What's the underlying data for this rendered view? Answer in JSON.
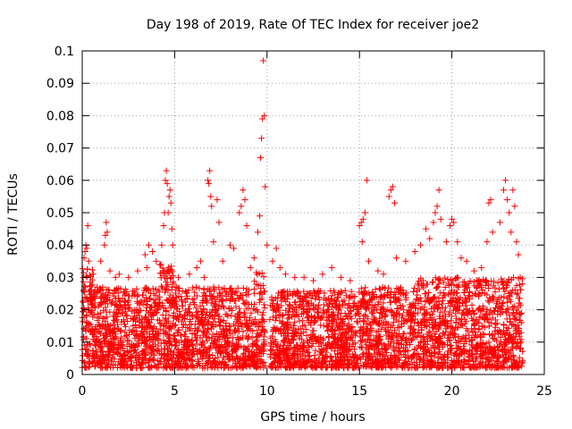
{
  "chart_data": {
    "type": "scatter",
    "title": "Day 198 of 2019, Rate Of TEC Index for receiver joe2",
    "xlabel": "GPS time / hours",
    "ylabel": "ROTI / TECUs",
    "xlim": [
      0,
      25
    ],
    "ylim": [
      0,
      0.1
    ],
    "xticks": [
      0,
      5,
      10,
      15,
      20,
      25
    ],
    "xtick_labels": [
      "0",
      "5",
      "10",
      "15",
      "20",
      "25"
    ],
    "yticks": [
      0,
      0.01,
      0.02,
      0.03,
      0.04,
      0.05,
      0.06,
      0.07,
      0.08,
      0.09,
      0.1
    ],
    "ytick_labels": [
      "0",
      "0.01",
      "0.02",
      "0.03",
      "0.04",
      "0.05",
      "0.06",
      "0.07",
      "0.08",
      "0.09",
      "0.1"
    ],
    "grid": true,
    "marker": "+",
    "color": "#ff0000",
    "series": [
      {
        "name": "ROTI",
        "points": [
          [
            0.05,
            0.03
          ],
          [
            0.1,
            0.036
          ],
          [
            0.15,
            0.038
          ],
          [
            0.2,
            0.04
          ],
          [
            0.25,
            0.039
          ],
          [
            0.3,
            0.046
          ],
          [
            0.35,
            0.035
          ],
          [
            0.6,
            0.031
          ],
          [
            0.8,
            0.027
          ],
          [
            1.0,
            0.035
          ],
          [
            1.2,
            0.04
          ],
          [
            1.25,
            0.043
          ],
          [
            1.3,
            0.047
          ],
          [
            1.35,
            0.044
          ],
          [
            1.5,
            0.032
          ],
          [
            1.8,
            0.03
          ],
          [
            2.0,
            0.031
          ],
          [
            2.5,
            0.03
          ],
          [
            3.0,
            0.032
          ],
          [
            3.4,
            0.037
          ],
          [
            3.5,
            0.033
          ],
          [
            3.6,
            0.04
          ],
          [
            3.8,
            0.038
          ],
          [
            4.0,
            0.035
          ],
          [
            4.2,
            0.034
          ],
          [
            4.3,
            0.04
          ],
          [
            4.4,
            0.046
          ],
          [
            4.45,
            0.05
          ],
          [
            4.5,
            0.06
          ],
          [
            4.55,
            0.063
          ],
          [
            4.6,
            0.059
          ],
          [
            4.65,
            0.05
          ],
          [
            4.7,
            0.055
          ],
          [
            4.75,
            0.057
          ],
          [
            4.8,
            0.053
          ],
          [
            4.85,
            0.045
          ],
          [
            4.9,
            0.04
          ],
          [
            5.2,
            0.03
          ],
          [
            5.8,
            0.031
          ],
          [
            6.2,
            0.033
          ],
          [
            6.4,
            0.035
          ],
          [
            6.6,
            0.03
          ],
          [
            6.8,
            0.06
          ],
          [
            6.85,
            0.059
          ],
          [
            6.9,
            0.063
          ],
          [
            6.95,
            0.055
          ],
          [
            7.0,
            0.052
          ],
          [
            7.1,
            0.041
          ],
          [
            7.3,
            0.054
          ],
          [
            7.4,
            0.047
          ],
          [
            7.6,
            0.035
          ],
          [
            8.0,
            0.04
          ],
          [
            8.2,
            0.039
          ],
          [
            8.5,
            0.05
          ],
          [
            8.6,
            0.052
          ],
          [
            8.7,
            0.057
          ],
          [
            8.8,
            0.054
          ],
          [
            8.9,
            0.046
          ],
          [
            9.1,
            0.033
          ],
          [
            9.3,
            0.036
          ],
          [
            9.5,
            0.044
          ],
          [
            9.6,
            0.049
          ],
          [
            9.65,
            0.067
          ],
          [
            9.7,
            0.073
          ],
          [
            9.75,
            0.079
          ],
          [
            9.8,
            0.097
          ],
          [
            9.85,
            0.08
          ],
          [
            9.9,
            0.058
          ],
          [
            10.0,
            0.04
          ],
          [
            10.3,
            0.035
          ],
          [
            10.5,
            0.039
          ],
          [
            10.7,
            0.033
          ],
          [
            11.0,
            0.031
          ],
          [
            11.5,
            0.03
          ],
          [
            12.0,
            0.03
          ],
          [
            12.5,
            0.029
          ],
          [
            13.0,
            0.031
          ],
          [
            13.5,
            0.033
          ],
          [
            14.0,
            0.03
          ],
          [
            14.5,
            0.029
          ],
          [
            15.0,
            0.046
          ],
          [
            15.1,
            0.047
          ],
          [
            15.15,
            0.041
          ],
          [
            15.2,
            0.048
          ],
          [
            15.3,
            0.05
          ],
          [
            15.4,
            0.06
          ],
          [
            15.5,
            0.035
          ],
          [
            16.0,
            0.032
          ],
          [
            16.3,
            0.031
          ],
          [
            16.6,
            0.055
          ],
          [
            16.7,
            0.057
          ],
          [
            16.8,
            0.058
          ],
          [
            16.9,
            0.053
          ],
          [
            17.0,
            0.036
          ],
          [
            17.5,
            0.035
          ],
          [
            18.0,
            0.038
          ],
          [
            18.3,
            0.04
          ],
          [
            18.6,
            0.045
          ],
          [
            18.8,
            0.042
          ],
          [
            19.0,
            0.047
          ],
          [
            19.1,
            0.05
          ],
          [
            19.2,
            0.052
          ],
          [
            19.3,
            0.057
          ],
          [
            19.4,
            0.048
          ],
          [
            19.7,
            0.041
          ],
          [
            19.9,
            0.046
          ],
          [
            20.0,
            0.048
          ],
          [
            20.1,
            0.047
          ],
          [
            20.3,
            0.041
          ],
          [
            20.5,
            0.036
          ],
          [
            20.8,
            0.035
          ],
          [
            21.2,
            0.032
          ],
          [
            21.6,
            0.033
          ],
          [
            21.9,
            0.041
          ],
          [
            22.0,
            0.053
          ],
          [
            22.1,
            0.054
          ],
          [
            22.2,
            0.044
          ],
          [
            22.6,
            0.047
          ],
          [
            22.8,
            0.057
          ],
          [
            22.9,
            0.06
          ],
          [
            23.0,
            0.054
          ],
          [
            23.1,
            0.05
          ],
          [
            23.2,
            0.044
          ],
          [
            23.3,
            0.057
          ],
          [
            23.4,
            0.052
          ],
          [
            23.5,
            0.041
          ],
          [
            23.6,
            0.037
          ],
          [
            23.7,
            0.03
          ],
          [
            23.8,
            0.028
          ]
        ]
      }
    ]
  }
}
